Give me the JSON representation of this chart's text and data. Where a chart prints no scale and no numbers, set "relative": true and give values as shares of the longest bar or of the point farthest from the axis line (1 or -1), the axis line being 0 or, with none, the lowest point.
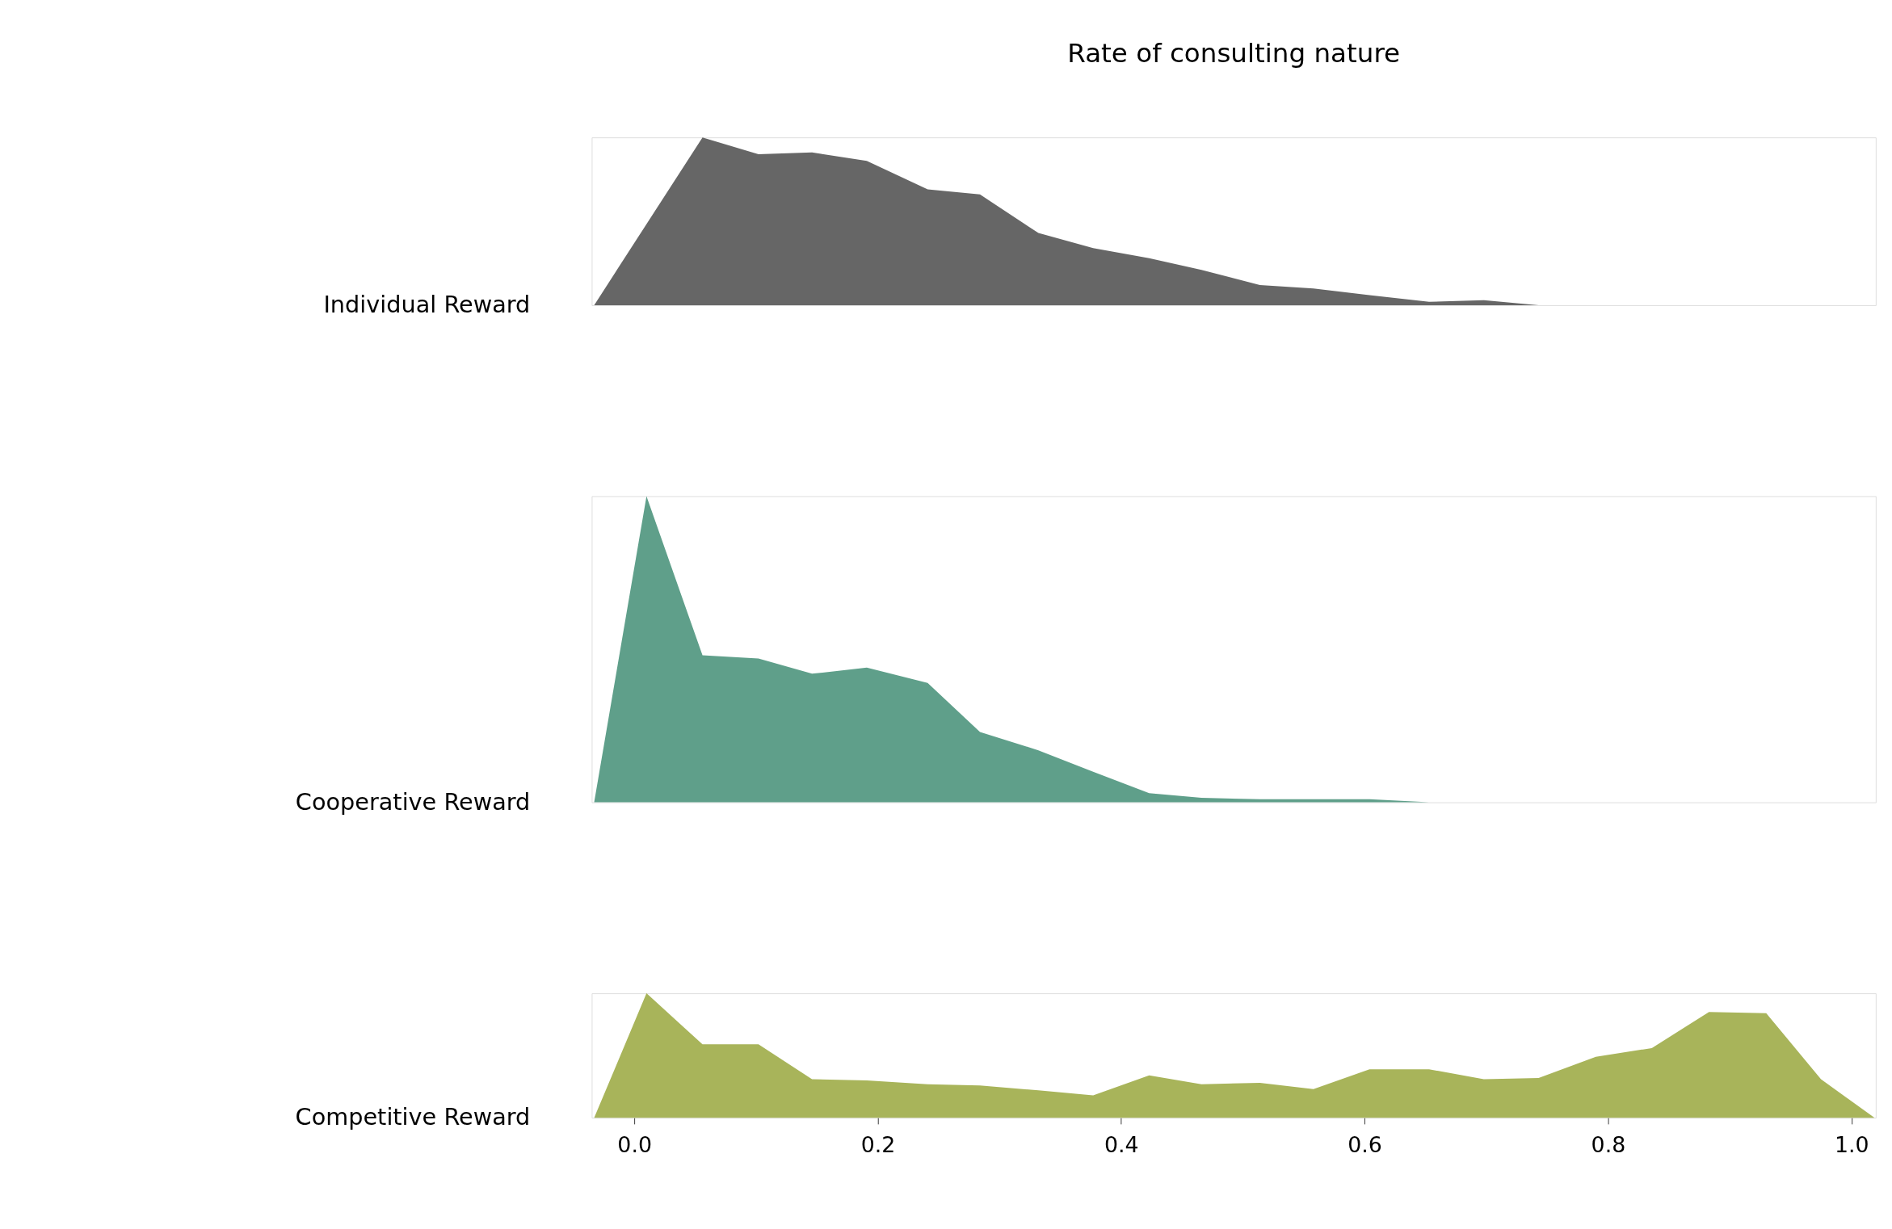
{
  "chart_data": [
    {
      "type": "area",
      "title": "Rate of consulting nature",
      "ylabel": "Individual Reward",
      "relative": true,
      "grid": false,
      "tick_labels": false,
      "xlim": [
        -0.035,
        1.02
      ],
      "series": [
        {
          "color": "#666666",
          "x": [
            -0.033,
            0.056,
            0.102,
            0.146,
            0.191,
            0.241,
            0.284,
            0.332,
            0.377,
            0.423,
            0.466,
            0.514,
            0.558,
            0.604,
            0.653,
            0.698,
            0.743
          ],
          "values": [
            0,
            1.0,
            0.9,
            0.91,
            0.86,
            0.69,
            0.66,
            0.43,
            0.34,
            0.28,
            0.21,
            0.12,
            0.1,
            0.06,
            0.02,
            0.03,
            0
          ]
        }
      ]
    },
    {
      "type": "area",
      "ylabel": "Cooperative Reward",
      "relative": true,
      "grid": false,
      "tick_labels": false,
      "xlim": [
        -0.035,
        1.02
      ],
      "series": [
        {
          "color": "#5f9f8a",
          "x": [
            -0.033,
            0.01,
            0.056,
            0.102,
            0.146,
            0.191,
            0.241,
            0.284,
            0.332,
            0.377,
            0.423,
            0.466,
            0.514,
            0.558,
            0.604,
            0.653
          ],
          "values": [
            0,
            1.0,
            0.48,
            0.47,
            0.42,
            0.44,
            0.39,
            0.23,
            0.17,
            0.1,
            0.03,
            0.015,
            0.01,
            0.01,
            0.01,
            0
          ]
        }
      ]
    },
    {
      "type": "area",
      "ylabel": "Competitive Reward",
      "relative": true,
      "grid": false,
      "tick_labels": "x",
      "xlim": [
        -0.035,
        1.02
      ],
      "xticks": [
        {
          "value": 0,
          "label": "0.0"
        },
        0.2,
        0.4,
        0.6,
        0.8,
        {
          "value": 1,
          "label": "1.0"
        }
      ],
      "series": [
        {
          "color": "#a8b45a",
          "x": [
            -0.033,
            0.01,
            0.056,
            0.102,
            0.146,
            0.191,
            0.241,
            0.284,
            0.332,
            0.377,
            0.423,
            0.466,
            0.514,
            0.558,
            0.604,
            0.653,
            0.698,
            0.743,
            0.79,
            0.836,
            0.883,
            0.93,
            0.975,
            1.019
          ],
          "values": [
            0,
            1.0,
            0.59,
            0.59,
            0.31,
            0.3,
            0.27,
            0.26,
            0.22,
            0.18,
            0.34,
            0.27,
            0.28,
            0.23,
            0.39,
            0.39,
            0.31,
            0.32,
            0.49,
            0.56,
            0.85,
            0.84,
            0.31,
            0
          ]
        }
      ]
    }
  ]
}
